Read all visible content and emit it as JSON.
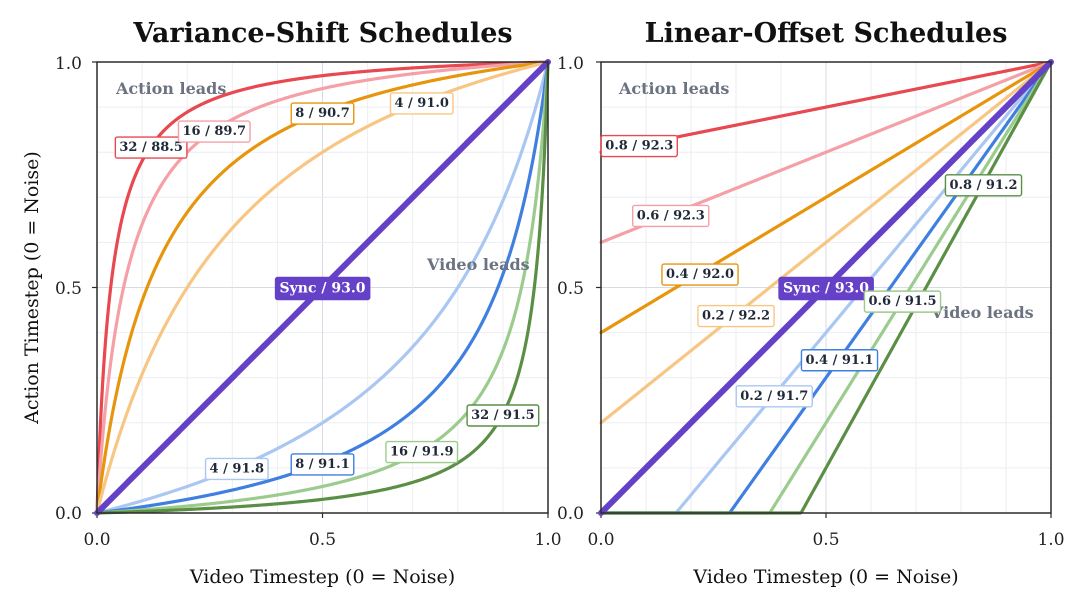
{
  "chart_data": [
    {
      "type": "line",
      "title": "Variance-Shift Schedules",
      "xlabel": "Video Timestep (0 = Noise)",
      "ylabel": "Action Timestep (0 = Noise)",
      "xlim": [
        0,
        1
      ],
      "ylim": [
        0,
        1
      ],
      "x_ticks": [
        "0.0",
        "0.5",
        "1.0"
      ],
      "y_ticks": [
        "0.0",
        "0.5",
        "1.0"
      ],
      "grid": true,
      "region_labels": {
        "upper": "Action leads",
        "lower": "Video leads"
      },
      "series": [
        {
          "label": "32 / 88.5",
          "shift": 32,
          "value": 88.5,
          "color": "#e8484f",
          "label_at": 0.12
        },
        {
          "label": "16 / 89.7",
          "shift": 16,
          "value": 89.7,
          "color": "#f4a0a6",
          "label_at": 0.26
        },
        {
          "label": "8 / 90.7",
          "shift": 8,
          "value": 90.7,
          "color": "#e8950e",
          "label_at": 0.5
        },
        {
          "label": "4 / 91.0",
          "shift": 4,
          "value": 91.0,
          "color": "#f8c683",
          "label_at": 0.72
        },
        {
          "label": "Sync / 93.0",
          "shift": 1,
          "value": 93.0,
          "color": "#6541c8",
          "label_at": 0.5,
          "sync": true
        },
        {
          "label": "4 / 91.8",
          "shift": 0.25,
          "value": 91.8,
          "color": "#a9c7f2",
          "label_at": 0.31
        },
        {
          "label": "8 / 91.1",
          "shift": 0.125,
          "value": 91.1,
          "color": "#3f7fe0",
          "label_at": 0.5
        },
        {
          "label": "16 / 91.9",
          "shift": 0.0625,
          "value": 91.9,
          "color": "#9ccb8e",
          "label_at": 0.72
        },
        {
          "label": "32 / 91.5",
          "shift": 0.03125,
          "value": 91.5,
          "color": "#5b8f45",
          "label_at": 0.9
        }
      ]
    },
    {
      "type": "line",
      "title": "Linear-Offset Schedules",
      "xlabel": "Video Timestep (0 = Noise)",
      "ylabel": "",
      "xlim": [
        0,
        1
      ],
      "ylim": [
        0,
        1
      ],
      "x_ticks": [
        "0.0",
        "0.5",
        "1.0"
      ],
      "y_ticks": [
        "0.0",
        "0.5",
        "1.0"
      ],
      "grid": true,
      "region_labels": {
        "upper": "Action leads",
        "lower": "Video leads"
      },
      "series": [
        {
          "label": "0.8 / 92.3",
          "offset": 0.8,
          "value": 92.3,
          "color": "#e8484f",
          "label_at": 0.085
        },
        {
          "label": "0.6 / 92.3",
          "offset": 0.6,
          "value": 92.3,
          "color": "#f4a0a6",
          "label_at": 0.155
        },
        {
          "label": "0.4 / 92.0",
          "offset": 0.4,
          "value": 92.0,
          "color": "#e8950e",
          "label_at": 0.22
        },
        {
          "label": "0.2 / 92.2",
          "offset": 0.2,
          "value": 92.2,
          "color": "#f8c683",
          "label_at": 0.3
        },
        {
          "label": "Sync / 93.0",
          "offset": 0.0,
          "value": 93.0,
          "color": "#6541c8",
          "label_at": 0.5,
          "sync": true
        },
        {
          "label": "0.2 / 91.7",
          "offset": -0.2,
          "value": 91.7,
          "color": "#a9c7f2",
          "label_at": 0.385
        },
        {
          "label": "0.4 / 91.1",
          "offset": -0.4,
          "value": 91.1,
          "color": "#3f7fe0",
          "label_at": 0.53
        },
        {
          "label": "0.6 / 91.5",
          "offset": -0.6,
          "value": 91.5,
          "color": "#9ccb8e",
          "label_at": 0.67
        },
        {
          "label": "0.8 / 91.2",
          "offset": -0.8,
          "value": 91.2,
          "color": "#5b8f45",
          "label_at": 0.85
        }
      ]
    }
  ]
}
